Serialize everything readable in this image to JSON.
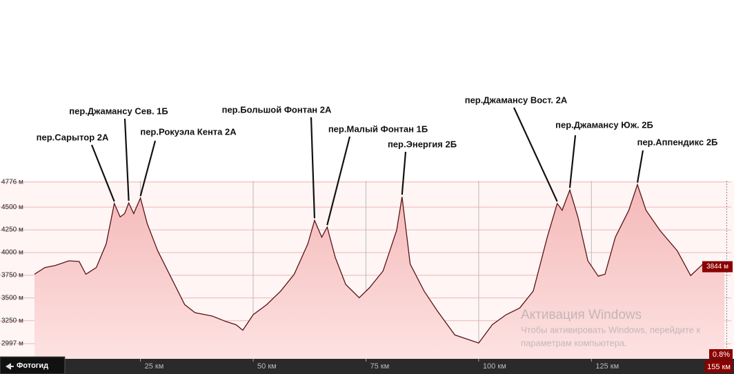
{
  "chart_data": {
    "type": "area",
    "x": [
      1.5,
      3.8,
      6.1,
      9.1,
      11.4,
      12.9,
      15.2,
      17.4,
      19.2,
      20.5,
      21.5,
      22.4,
      23.5,
      25,
      26.5,
      28.8,
      31.8,
      34.8,
      37.1,
      40.9,
      43.9,
      46.2,
      47.7,
      50,
      53,
      56.1,
      59.1,
      62.1,
      63.6,
      65.2,
      66.4,
      68.2,
      70.5,
      73.5,
      75.8,
      78.8,
      81.8,
      83,
      84.8,
      87.9,
      90.9,
      94.7,
      100,
      103,
      106.1,
      109.1,
      112.1,
      115.2,
      117.4,
      118.5,
      120.2,
      122,
      124.2,
      126.5,
      128,
      130.3,
      133.3,
      135.2,
      137.1,
      140.2,
      144,
      147,
      150,
      154.5
    ],
    "values": [
      3761,
      3835,
      3857,
      3909,
      3902,
      3761,
      3835,
      4095,
      4540,
      4392,
      4429,
      4547,
      4429,
      4600,
      4318,
      4021,
      3724,
      3427,
      3338,
      3301,
      3242,
      3205,
      3145,
      3316,
      3427,
      3576,
      3761,
      4095,
      4355,
      4169,
      4280,
      3947,
      3650,
      3502,
      3613,
      3798,
      4243,
      4614,
      3873,
      3576,
      3353,
      3093,
      3004,
      3205,
      3316,
      3390,
      3576,
      4169,
      4540,
      4466,
      4689,
      4392,
      3910,
      3739,
      3761,
      4169,
      4466,
      4748,
      4466,
      4243,
      4021,
      3746,
      3887,
      3798
    ],
    "color": "#5a1212",
    "xlim": [
      1.5,
      156
    ],
    "ylim": [
      2830,
      4790
    ],
    "xticks": [
      {
        "value": 25,
        "label": "25 км"
      },
      {
        "value": 50,
        "label": "50 км"
      },
      {
        "value": 75,
        "label": "75 км"
      },
      {
        "value": 100,
        "label": "100 км"
      },
      {
        "value": 125,
        "label": "125 км"
      }
    ],
    "yticks": [
      {
        "value": 2997,
        "label": "2997 м"
      },
      {
        "value": 3250,
        "label": "3250 м"
      },
      {
        "value": 3500,
        "label": "3500 м"
      },
      {
        "value": 3750,
        "label": "3750 м"
      },
      {
        "value": 4000,
        "label": "4000 м"
      },
      {
        "value": 4250,
        "label": "4250 м"
      },
      {
        "value": 4500,
        "label": "4500 м"
      },
      {
        "value": 4776,
        "label": "4776 м"
      }
    ],
    "grid": true,
    "annotations": [
      {
        "text": "пер.Сарытор 2А",
        "x": 19.2
      },
      {
        "text": "пер.Джамансу Сев. 1Б",
        "x": 22.4
      },
      {
        "text": "пер.Рокуэла Кента 2А",
        "x": 25
      },
      {
        "text": "пер.Большой Фонтан 2А",
        "x": 63.6
      },
      {
        "text": "пер.Малый Фонтан 1Б",
        "x": 66.4
      },
      {
        "text": "пер.Энергия 2Б",
        "x": 83
      },
      {
        "text": "пер.Джамансу Вост. 2А",
        "x": 117.4
      },
      {
        "text": "пер.Джамансу Юж. 2Б",
        "x": 120.2
      },
      {
        "text": "пер.Аппендикс 2Б",
        "x": 135.2
      }
    ],
    "current_elevation": {
      "value": 3844,
      "label": "3844 м"
    },
    "cursor": {
      "value": 155,
      "label": "155 км"
    },
    "grade": "0.8%"
  },
  "ui": {
    "photo_guide": "Фотогид"
  },
  "watermark": {
    "title": "Активация Windows",
    "line1": "Чтобы активировать Windows, перейдите к",
    "line2": "параметрам компьютера."
  }
}
